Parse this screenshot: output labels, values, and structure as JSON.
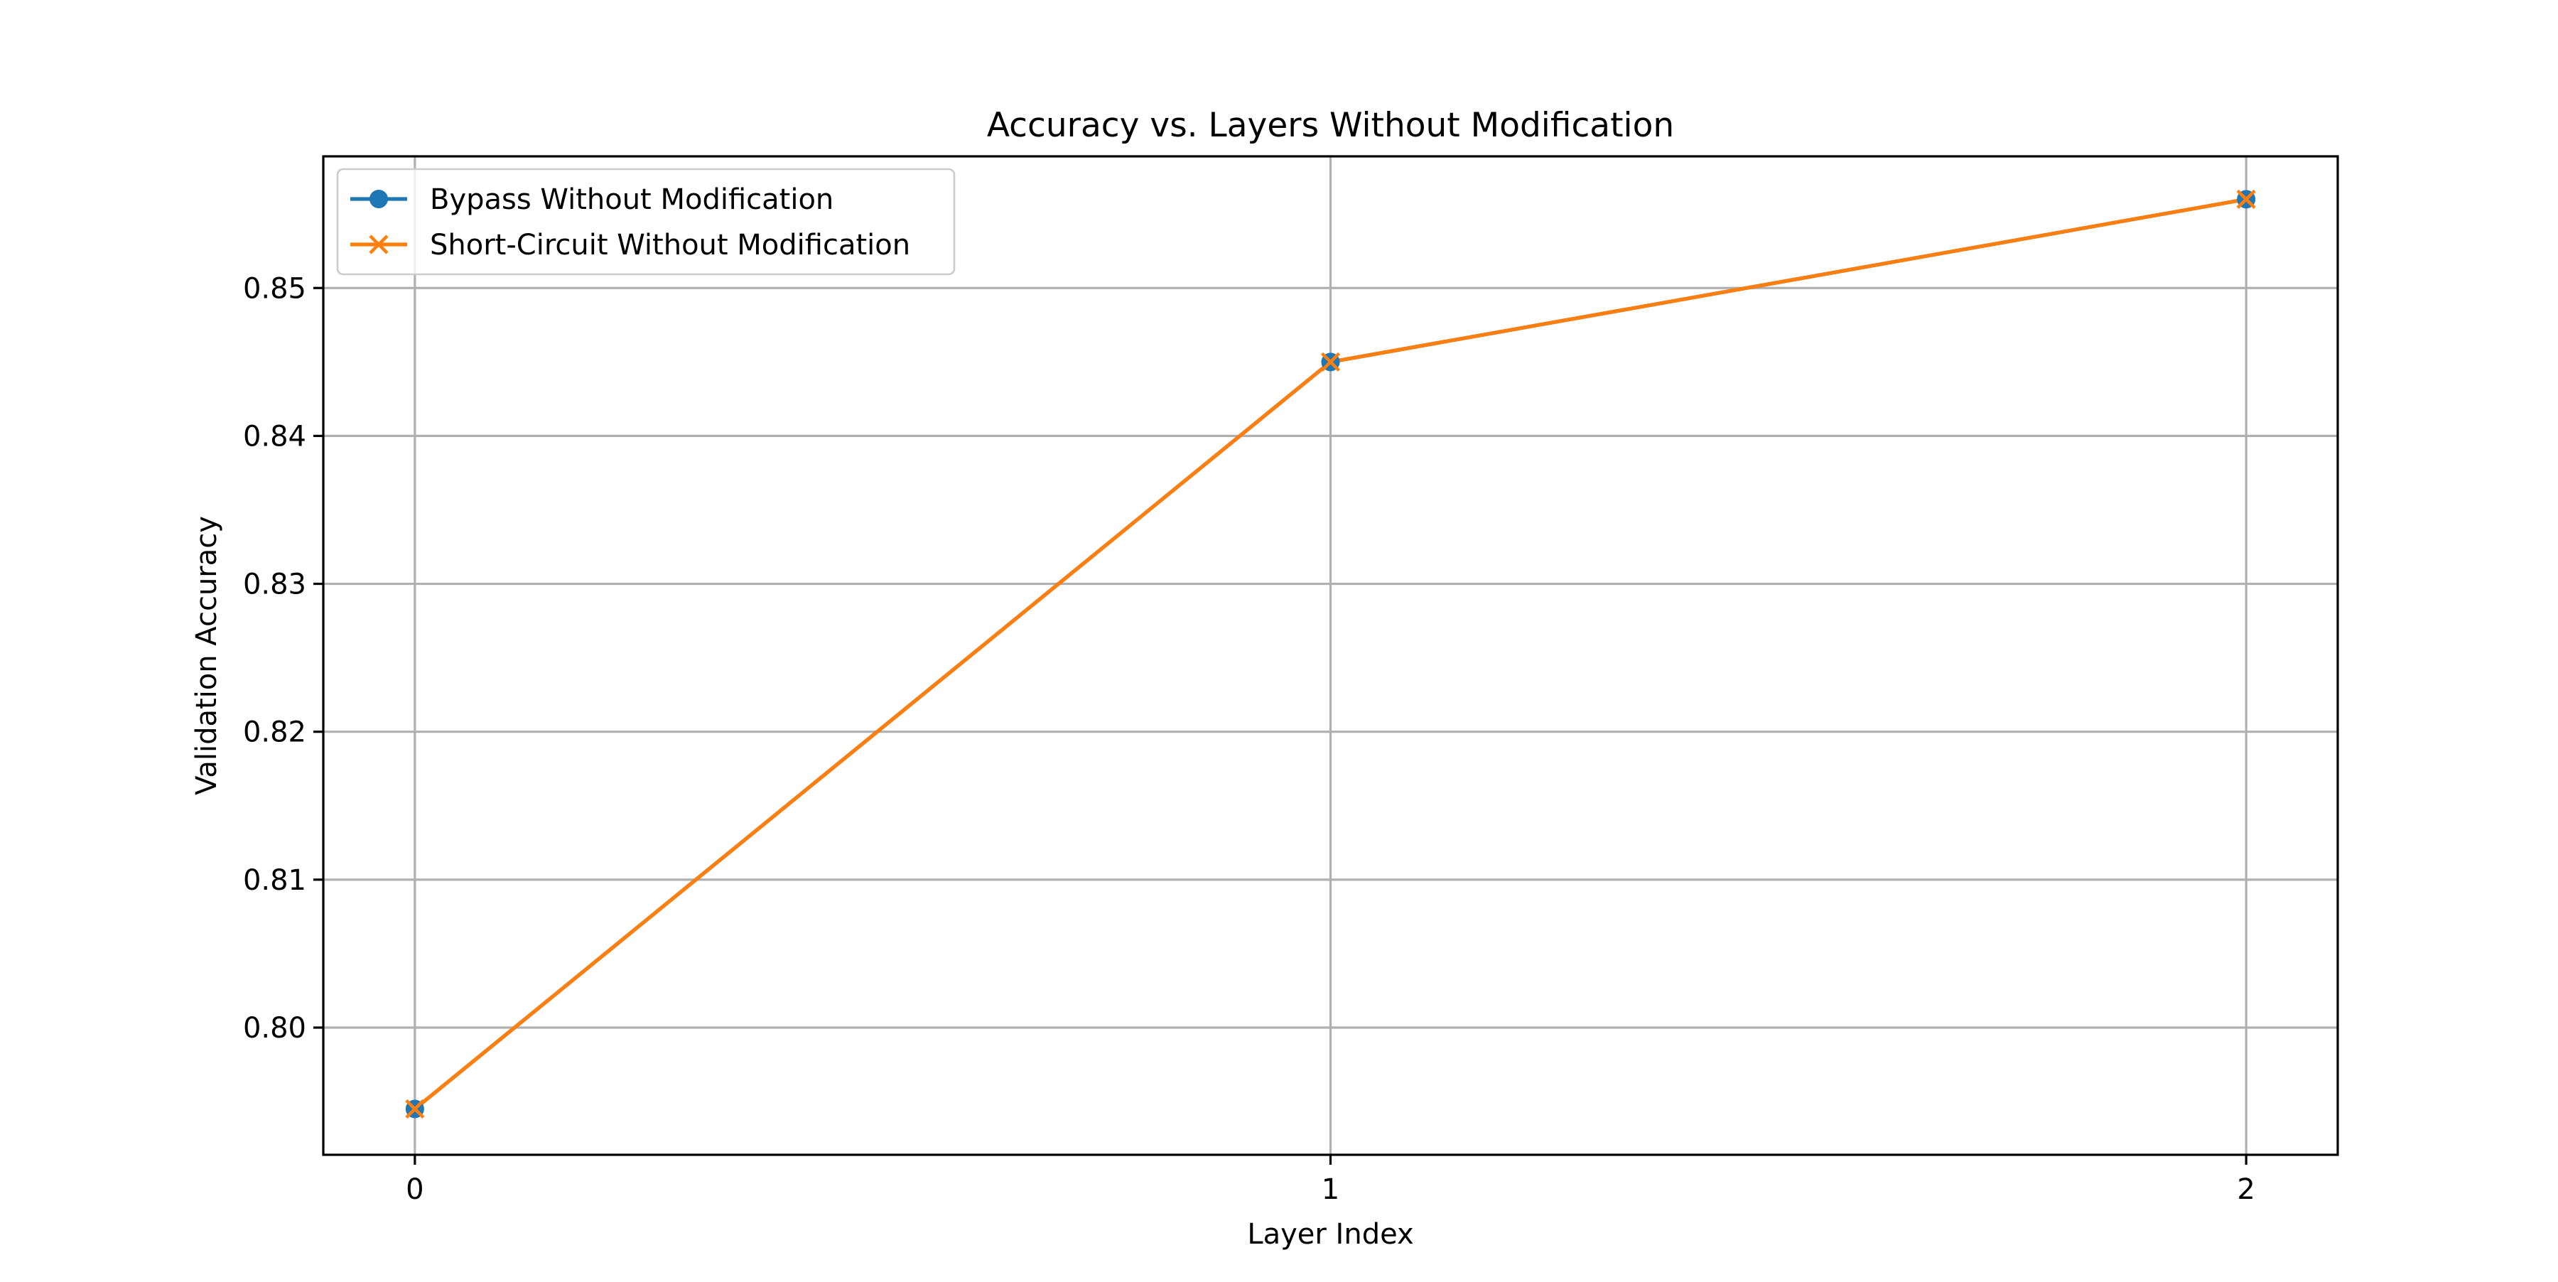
{
  "chart_data": {
    "type": "line",
    "title": "Accuracy vs. Layers Without Modification",
    "xlabel": "Layer Index",
    "ylabel": "Validation Accuracy",
    "x": [
      0,
      1,
      2
    ],
    "x_ticks": [
      0,
      1,
      2
    ],
    "x_tick_labels": [
      "0",
      "1",
      "2"
    ],
    "xlim": [
      -0.1,
      2.1
    ],
    "y_ticks": [
      0.8,
      0.81,
      0.82,
      0.83,
      0.84,
      0.85
    ],
    "y_tick_labels": [
      "0.80",
      "0.81",
      "0.82",
      "0.83",
      "0.84",
      "0.85"
    ],
    "ylim": [
      0.7914,
      0.8589
    ],
    "grid": true,
    "legend_position": "top-left",
    "series": [
      {
        "name": "Bypass Without Modification",
        "values": [
          0.7945,
          0.845,
          0.856
        ],
        "color": "#1f77b4",
        "marker": "circle"
      },
      {
        "name": "Short-Circuit Without Modification",
        "values": [
          0.7945,
          0.845,
          0.856
        ],
        "color": "#ff7f0e",
        "marker": "x"
      }
    ]
  }
}
